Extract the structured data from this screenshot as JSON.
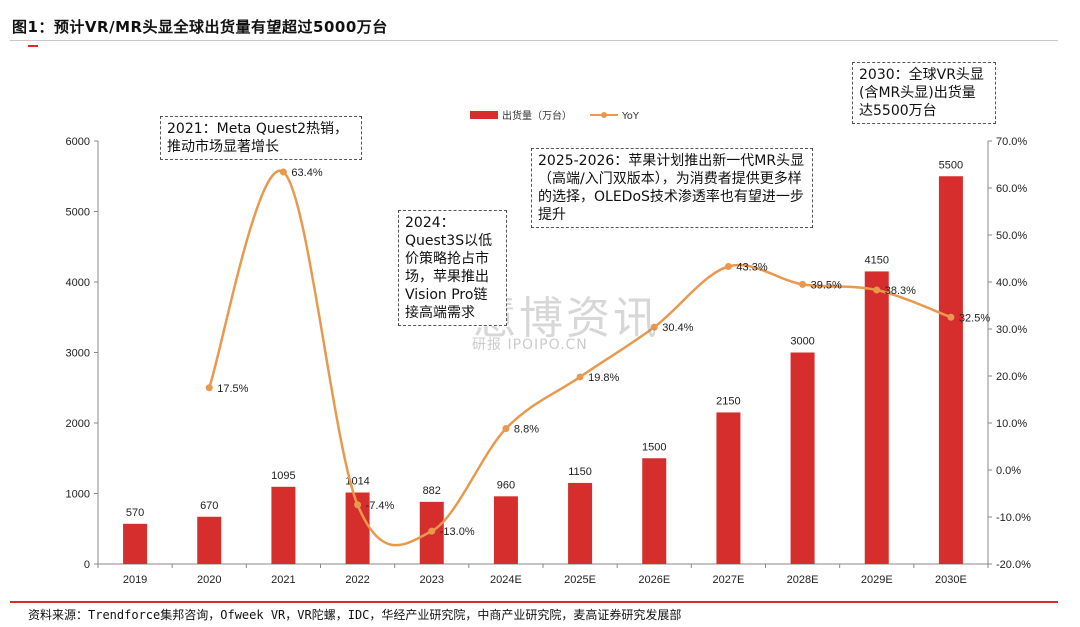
{
  "title": "图1：预计VR/MR头显全球出货量有望超过5000万台",
  "source": "资料来源：Trendforce集邦咨询，Ofweek VR，VR陀螺，IDC，华经产业研究院，中商产业研究院，麦高证券研究发展部",
  "watermark": "慧博资讯",
  "watermark_url": "研报 IPOIPO.CN",
  "colors": {
    "bar": "#d62d2d",
    "line": "#e8994e",
    "accent": "#d62d2d"
  },
  "annotations": [
    {
      "id": "a2021",
      "text": "2021：Meta Quest2热销，推动市场显著增长"
    },
    {
      "id": "a2024",
      "text": "2024：Quest3S以低价策略抢占市场，苹果推出Vision Pro链接高端需求"
    },
    {
      "id": "a2025",
      "text": "2025-2026：苹果计划推出新一代MR头显（高端/入门双版本），为消费者提供更多样的选择，OLEDoS技术渗透率也有望进一步提升"
    },
    {
      "id": "a2030",
      "text": "2030：全球VR头显(含MR头显)出货量达5500万台"
    }
  ],
  "chart_data": {
    "type": "bar",
    "categories": [
      "2019",
      "2020",
      "2021",
      "2022",
      "2023",
      "2024E",
      "2025E",
      "2026E",
      "2027E",
      "2028E",
      "2029E",
      "2030E"
    ],
    "series": [
      {
        "name": "出货量（万台）",
        "type": "bar",
        "axis": "left",
        "values": [
          570,
          670,
          1095,
          1014,
          882,
          960,
          1150,
          1500,
          2150,
          3000,
          4150,
          5500
        ],
        "labels": [
          "570",
          "670",
          "1095",
          "1014",
          "882",
          "960",
          "1150",
          "1500",
          "2150",
          "3000",
          "4150",
          "5500"
        ]
      },
      {
        "name": "YoY",
        "type": "line",
        "axis": "right",
        "values": [
          null,
          17.5,
          63.4,
          -7.4,
          -13.0,
          8.8,
          19.8,
          30.4,
          43.3,
          39.5,
          38.3,
          32.5
        ],
        "labels": [
          "",
          "17.5%",
          "63.4%",
          "-7.4%",
          "-13.0%",
          "8.8%",
          "19.8%",
          "30.4%",
          "43.3%",
          "39.5%",
          "38.3%",
          "32.5%"
        ]
      }
    ],
    "ylim_left": [
      0,
      6000
    ],
    "yticks_left": [
      "0",
      "1000",
      "2000",
      "3000",
      "4000",
      "5000",
      "6000"
    ],
    "ylim_right": [
      -20,
      70
    ],
    "yticks_right": [
      "-20.0%",
      "-10.0%",
      "0.0%",
      "10.0%",
      "20.0%",
      "30.0%",
      "40.0%",
      "50.0%",
      "60.0%",
      "70.0%"
    ],
    "legend_position": "top-center",
    "grid": false
  }
}
